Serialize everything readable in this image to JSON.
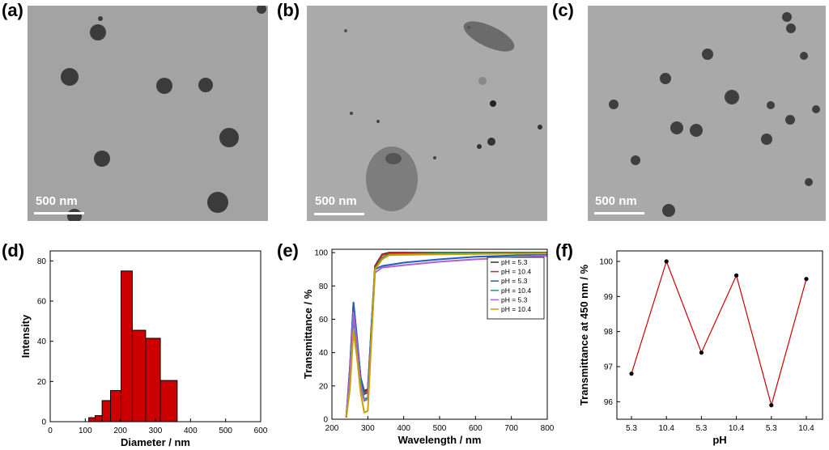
{
  "panels": {
    "a": {
      "label": "(a)",
      "scale_bar": "500 nm"
    },
    "b": {
      "label": "(b)",
      "scale_bar": "500 nm"
    },
    "c": {
      "label": "(c)",
      "scale_bar": "500 nm"
    },
    "d": {
      "label": "(d)"
    },
    "e": {
      "label": "(e)"
    },
    "f": {
      "label": "(f)"
    }
  },
  "colors": {
    "tem_bg": "#a6a6a6",
    "particle": "#3b3b3b",
    "bar": "#cc0000",
    "line_f": "#cc0000"
  },
  "chart_data": [
    {
      "id": "d",
      "type": "bar",
      "xlabel": "Diameter / nm",
      "ylabel": "Intensity",
      "xlim": [
        0,
        600
      ],
      "ylim": [
        0,
        85
      ],
      "xticks": [
        0,
        100,
        200,
        300,
        400,
        500,
        600
      ],
      "yticks": [
        0,
        20,
        40,
        60,
        80
      ],
      "bins": [
        {
          "x0": 110,
          "x1": 128,
          "value": 2
        },
        {
          "x0": 128,
          "x1": 148,
          "value": 3
        },
        {
          "x0": 148,
          "x1": 172,
          "value": 10.5
        },
        {
          "x0": 172,
          "x1": 202,
          "value": 15.5
        },
        {
          "x0": 202,
          "x1": 234,
          "value": 75
        },
        {
          "x0": 234,
          "x1": 272,
          "value": 45.5
        },
        {
          "x0": 272,
          "x1": 314,
          "value": 41.5
        },
        {
          "x0": 314,
          "x1": 362,
          "value": 20.5
        }
      ]
    },
    {
      "id": "e",
      "type": "line",
      "xlabel": "Wavelength / nm",
      "ylabel": "Transmittance / %",
      "xlim": [
        200,
        800
      ],
      "ylim": [
        0,
        102
      ],
      "xticks": [
        200,
        300,
        400,
        500,
        600,
        700,
        800
      ],
      "yticks": [
        0,
        20,
        40,
        60,
        80,
        100
      ],
      "legend_position": "top-right",
      "series": [
        {
          "name": "pH = 5.3",
          "color": "#333333",
          "points": [
            [
              240,
              1
            ],
            [
              250,
              30
            ],
            [
              260,
              70
            ],
            [
              270,
              48
            ],
            [
              280,
              25
            ],
            [
              290,
              17
            ],
            [
              300,
              18
            ],
            [
              310,
              55
            ],
            [
              320,
              92
            ],
            [
              340,
              99
            ],
            [
              360,
              100
            ],
            [
              500,
              100
            ],
            [
              800,
              100
            ]
          ]
        },
        {
          "name": "pH = 10.4",
          "color": "#e02020",
          "points": [
            [
              240,
              1
            ],
            [
              250,
              28
            ],
            [
              260,
              66
            ],
            [
              270,
              46
            ],
            [
              280,
              24
            ],
            [
              290,
              16
            ],
            [
              300,
              17
            ],
            [
              310,
              54
            ],
            [
              320,
              91
            ],
            [
              340,
              98.5
            ],
            [
              360,
              99.5
            ],
            [
              500,
              99.8
            ],
            [
              800,
              100
            ]
          ]
        },
        {
          "name": "pH = 5.3",
          "color": "#1f5fbf",
          "points": [
            [
              240,
              1
            ],
            [
              250,
              31
            ],
            [
              260,
              70
            ],
            [
              270,
              49
            ],
            [
              280,
              25
            ],
            [
              290,
              15
            ],
            [
              300,
              16
            ],
            [
              310,
              56
            ],
            [
              320,
              90
            ],
            [
              340,
              92
            ],
            [
              400,
              94
            ],
            [
              500,
              96
            ],
            [
              600,
              97.5
            ],
            [
              800,
              99
            ]
          ]
        },
        {
          "name": "pH = 10.4",
          "color": "#20a060",
          "points": [
            [
              240,
              1
            ],
            [
              250,
              25
            ],
            [
              260,
              60
            ],
            [
              270,
              44
            ],
            [
              280,
              22
            ],
            [
              290,
              12
            ],
            [
              300,
              13
            ],
            [
              310,
              52
            ],
            [
              320,
              90
            ],
            [
              340,
              97
            ],
            [
              360,
              99
            ],
            [
              500,
              99.5
            ],
            [
              800,
              99.5
            ]
          ]
        },
        {
          "name": "pH = 5.3",
          "color": "#b060d0",
          "points": [
            [
              240,
              1
            ],
            [
              250,
              27
            ],
            [
              260,
              64
            ],
            [
              270,
              45
            ],
            [
              280,
              20
            ],
            [
              290,
              11
            ],
            [
              300,
              12
            ],
            [
              310,
              50
            ],
            [
              320,
              88
            ],
            [
              340,
              91
            ],
            [
              400,
              92.5
            ],
            [
              500,
              94.5
            ],
            [
              600,
              96
            ],
            [
              800,
              98
            ]
          ]
        },
        {
          "name": "pH = 10.4",
          "color": "#c8a000",
          "points": [
            [
              240,
              1
            ],
            [
              250,
              18
            ],
            [
              260,
              53
            ],
            [
              270,
              37
            ],
            [
              280,
              16
            ],
            [
              290,
              4
            ],
            [
              300,
              5
            ],
            [
              310,
              48
            ],
            [
              320,
              90
            ],
            [
              340,
              96
            ],
            [
              360,
              98.5
            ],
            [
              500,
              99
            ],
            [
              800,
              99.5
            ]
          ]
        }
      ]
    },
    {
      "id": "f",
      "type": "line",
      "xlabel": "pH",
      "ylabel": "Transmittance at 450 nm / %",
      "ylim": [
        95.5,
        100.3
      ],
      "yticks": [
        96,
        97,
        98,
        99,
        100
      ],
      "categories": [
        "5.3",
        "10.4",
        "5.3",
        "10.4",
        "5.3",
        "10.4"
      ],
      "values": [
        96.8,
        100,
        97.4,
        99.6,
        95.9,
        99.5
      ]
    }
  ]
}
